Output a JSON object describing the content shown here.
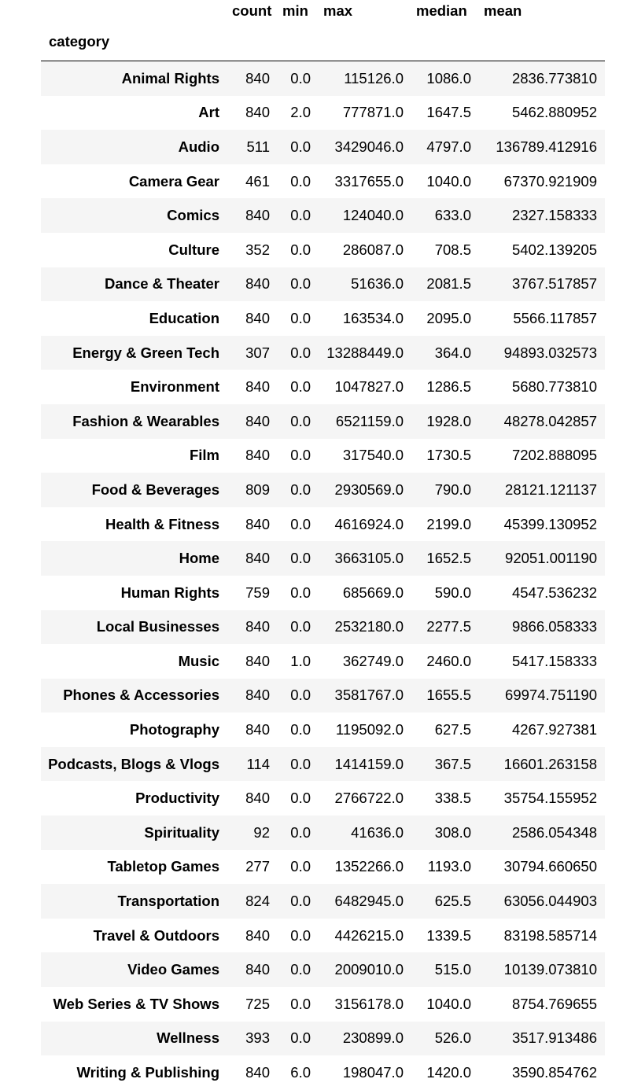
{
  "table": {
    "columns": [
      "count",
      "min",
      "max",
      "median",
      "mean"
    ],
    "index_name": "category",
    "rows": [
      {
        "category": "Animal Rights",
        "count": "840",
        "min": "0.0",
        "max": "115126.0",
        "median": "1086.0",
        "mean": "2836.773810"
      },
      {
        "category": "Art",
        "count": "840",
        "min": "2.0",
        "max": "777871.0",
        "median": "1647.5",
        "mean": "5462.880952"
      },
      {
        "category": "Audio",
        "count": "511",
        "min": "0.0",
        "max": "3429046.0",
        "median": "4797.0",
        "mean": "136789.412916"
      },
      {
        "category": "Camera Gear",
        "count": "461",
        "min": "0.0",
        "max": "3317655.0",
        "median": "1040.0",
        "mean": "67370.921909"
      },
      {
        "category": "Comics",
        "count": "840",
        "min": "0.0",
        "max": "124040.0",
        "median": "633.0",
        "mean": "2327.158333"
      },
      {
        "category": "Culture",
        "count": "352",
        "min": "0.0",
        "max": "286087.0",
        "median": "708.5",
        "mean": "5402.139205"
      },
      {
        "category": "Dance & Theater",
        "count": "840",
        "min": "0.0",
        "max": "51636.0",
        "median": "2081.5",
        "mean": "3767.517857"
      },
      {
        "category": "Education",
        "count": "840",
        "min": "0.0",
        "max": "163534.0",
        "median": "2095.0",
        "mean": "5566.117857"
      },
      {
        "category": "Energy & Green Tech",
        "count": "307",
        "min": "0.0",
        "max": "13288449.0",
        "median": "364.0",
        "mean": "94893.032573"
      },
      {
        "category": "Environment",
        "count": "840",
        "min": "0.0",
        "max": "1047827.0",
        "median": "1286.5",
        "mean": "5680.773810"
      },
      {
        "category": "Fashion & Wearables",
        "count": "840",
        "min": "0.0",
        "max": "6521159.0",
        "median": "1928.0",
        "mean": "48278.042857"
      },
      {
        "category": "Film",
        "count": "840",
        "min": "0.0",
        "max": "317540.0",
        "median": "1730.5",
        "mean": "7202.888095"
      },
      {
        "category": "Food & Beverages",
        "count": "809",
        "min": "0.0",
        "max": "2930569.0",
        "median": "790.0",
        "mean": "28121.121137"
      },
      {
        "category": "Health & Fitness",
        "count": "840",
        "min": "0.0",
        "max": "4616924.0",
        "median": "2199.0",
        "mean": "45399.130952"
      },
      {
        "category": "Home",
        "count": "840",
        "min": "0.0",
        "max": "3663105.0",
        "median": "1652.5",
        "mean": "92051.001190"
      },
      {
        "category": "Human Rights",
        "count": "759",
        "min": "0.0",
        "max": "685669.0",
        "median": "590.0",
        "mean": "4547.536232"
      },
      {
        "category": "Local Businesses",
        "count": "840",
        "min": "0.0",
        "max": "2532180.0",
        "median": "2277.5",
        "mean": "9866.058333"
      },
      {
        "category": "Music",
        "count": "840",
        "min": "1.0",
        "max": "362749.0",
        "median": "2460.0",
        "mean": "5417.158333"
      },
      {
        "category": "Phones & Accessories",
        "count": "840",
        "min": "0.0",
        "max": "3581767.0",
        "median": "1655.5",
        "mean": "69974.751190"
      },
      {
        "category": "Photography",
        "count": "840",
        "min": "0.0",
        "max": "1195092.0",
        "median": "627.5",
        "mean": "4267.927381"
      },
      {
        "category": "Podcasts, Blogs & Vlogs",
        "count": "114",
        "min": "0.0",
        "max": "1414159.0",
        "median": "367.5",
        "mean": "16601.263158"
      },
      {
        "category": "Productivity",
        "count": "840",
        "min": "0.0",
        "max": "2766722.0",
        "median": "338.5",
        "mean": "35754.155952"
      },
      {
        "category": "Spirituality",
        "count": "92",
        "min": "0.0",
        "max": "41636.0",
        "median": "308.0",
        "mean": "2586.054348"
      },
      {
        "category": "Tabletop Games",
        "count": "277",
        "min": "0.0",
        "max": "1352266.0",
        "median": "1193.0",
        "mean": "30794.660650"
      },
      {
        "category": "Transportation",
        "count": "824",
        "min": "0.0",
        "max": "6482945.0",
        "median": "625.5",
        "mean": "63056.044903"
      },
      {
        "category": "Travel & Outdoors",
        "count": "840",
        "min": "0.0",
        "max": "4426215.0",
        "median": "1339.5",
        "mean": "83198.585714"
      },
      {
        "category": "Video Games",
        "count": "840",
        "min": "0.0",
        "max": "2009010.0",
        "median": "515.0",
        "mean": "10139.073810"
      },
      {
        "category": "Web Series & TV Shows",
        "count": "725",
        "min": "0.0",
        "max": "3156178.0",
        "median": "1040.0",
        "mean": "8754.769655"
      },
      {
        "category": "Wellness",
        "count": "393",
        "min": "0.0",
        "max": "230899.0",
        "median": "526.0",
        "mean": "3517.913486"
      },
      {
        "category": "Writing & Publishing",
        "count": "840",
        "min": "6.0",
        "max": "198047.0",
        "median": "1420.0",
        "mean": "3590.854762"
      }
    ]
  }
}
